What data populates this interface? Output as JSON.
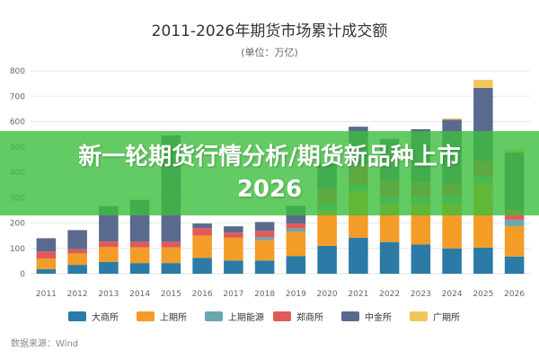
{
  "banner": {
    "text": "新一轮期货行情分析/期货新品种上市2026"
  },
  "chart_data": {
    "type": "bar",
    "stacked": true,
    "title": "2011-2026年期货市场累计成交额",
    "subtitle": "(单位：万亿)",
    "ylim": [
      0,
      800
    ],
    "yticks": [
      0,
      100,
      200,
      300,
      400,
      500,
      600,
      700,
      800
    ],
    "grid": true,
    "legend_position": "bottom",
    "source": "数据来源：Wind",
    "categories": [
      "2011",
      "2012",
      "2013",
      "2014",
      "2015",
      "2016",
      "2017",
      "2018",
      "2019",
      "2020",
      "2021",
      "2022",
      "2023",
      "2024",
      "2025",
      "2026"
    ],
    "series": [
      {
        "name": "大商所",
        "color": "#2b7ba6",
        "values": [
          18,
          35,
          47,
          42,
          42,
          62,
          52,
          52,
          70,
          110,
          142,
          125,
          115,
          100,
          103,
          68
        ]
      },
      {
        "name": "上期所",
        "color": "#f39c27",
        "values": [
          42,
          45,
          58,
          62,
          62,
          88,
          90,
          80,
          95,
          140,
          185,
          150,
          160,
          180,
          255,
          120
        ]
      },
      {
        "name": "上期能源",
        "color": "#6aa7b0",
        "values": [
          0,
          0,
          0,
          0,
          0,
          0,
          0,
          12,
          13,
          25,
          25,
          25,
          25,
          25,
          25,
          25
        ]
      },
      {
        "name": "郑商所",
        "color": "#e05a5a",
        "values": [
          28,
          17,
          22,
          22,
          22,
          30,
          20,
          25,
          20,
          60,
          80,
          70,
          60,
          50,
          60,
          40
        ]
      },
      {
        "name": "中金所",
        "color": "#5a6a8e",
        "values": [
          52,
          75,
          140,
          165,
          420,
          18,
          25,
          35,
          70,
          100,
          148,
          162,
          210,
          253,
          290,
          225
        ]
      },
      {
        "name": "广期所",
        "color": "#f0c75a",
        "values": [
          0,
          0,
          0,
          0,
          0,
          0,
          0,
          0,
          0,
          0,
          0,
          0,
          0,
          5,
          32,
          12
        ]
      }
    ]
  }
}
